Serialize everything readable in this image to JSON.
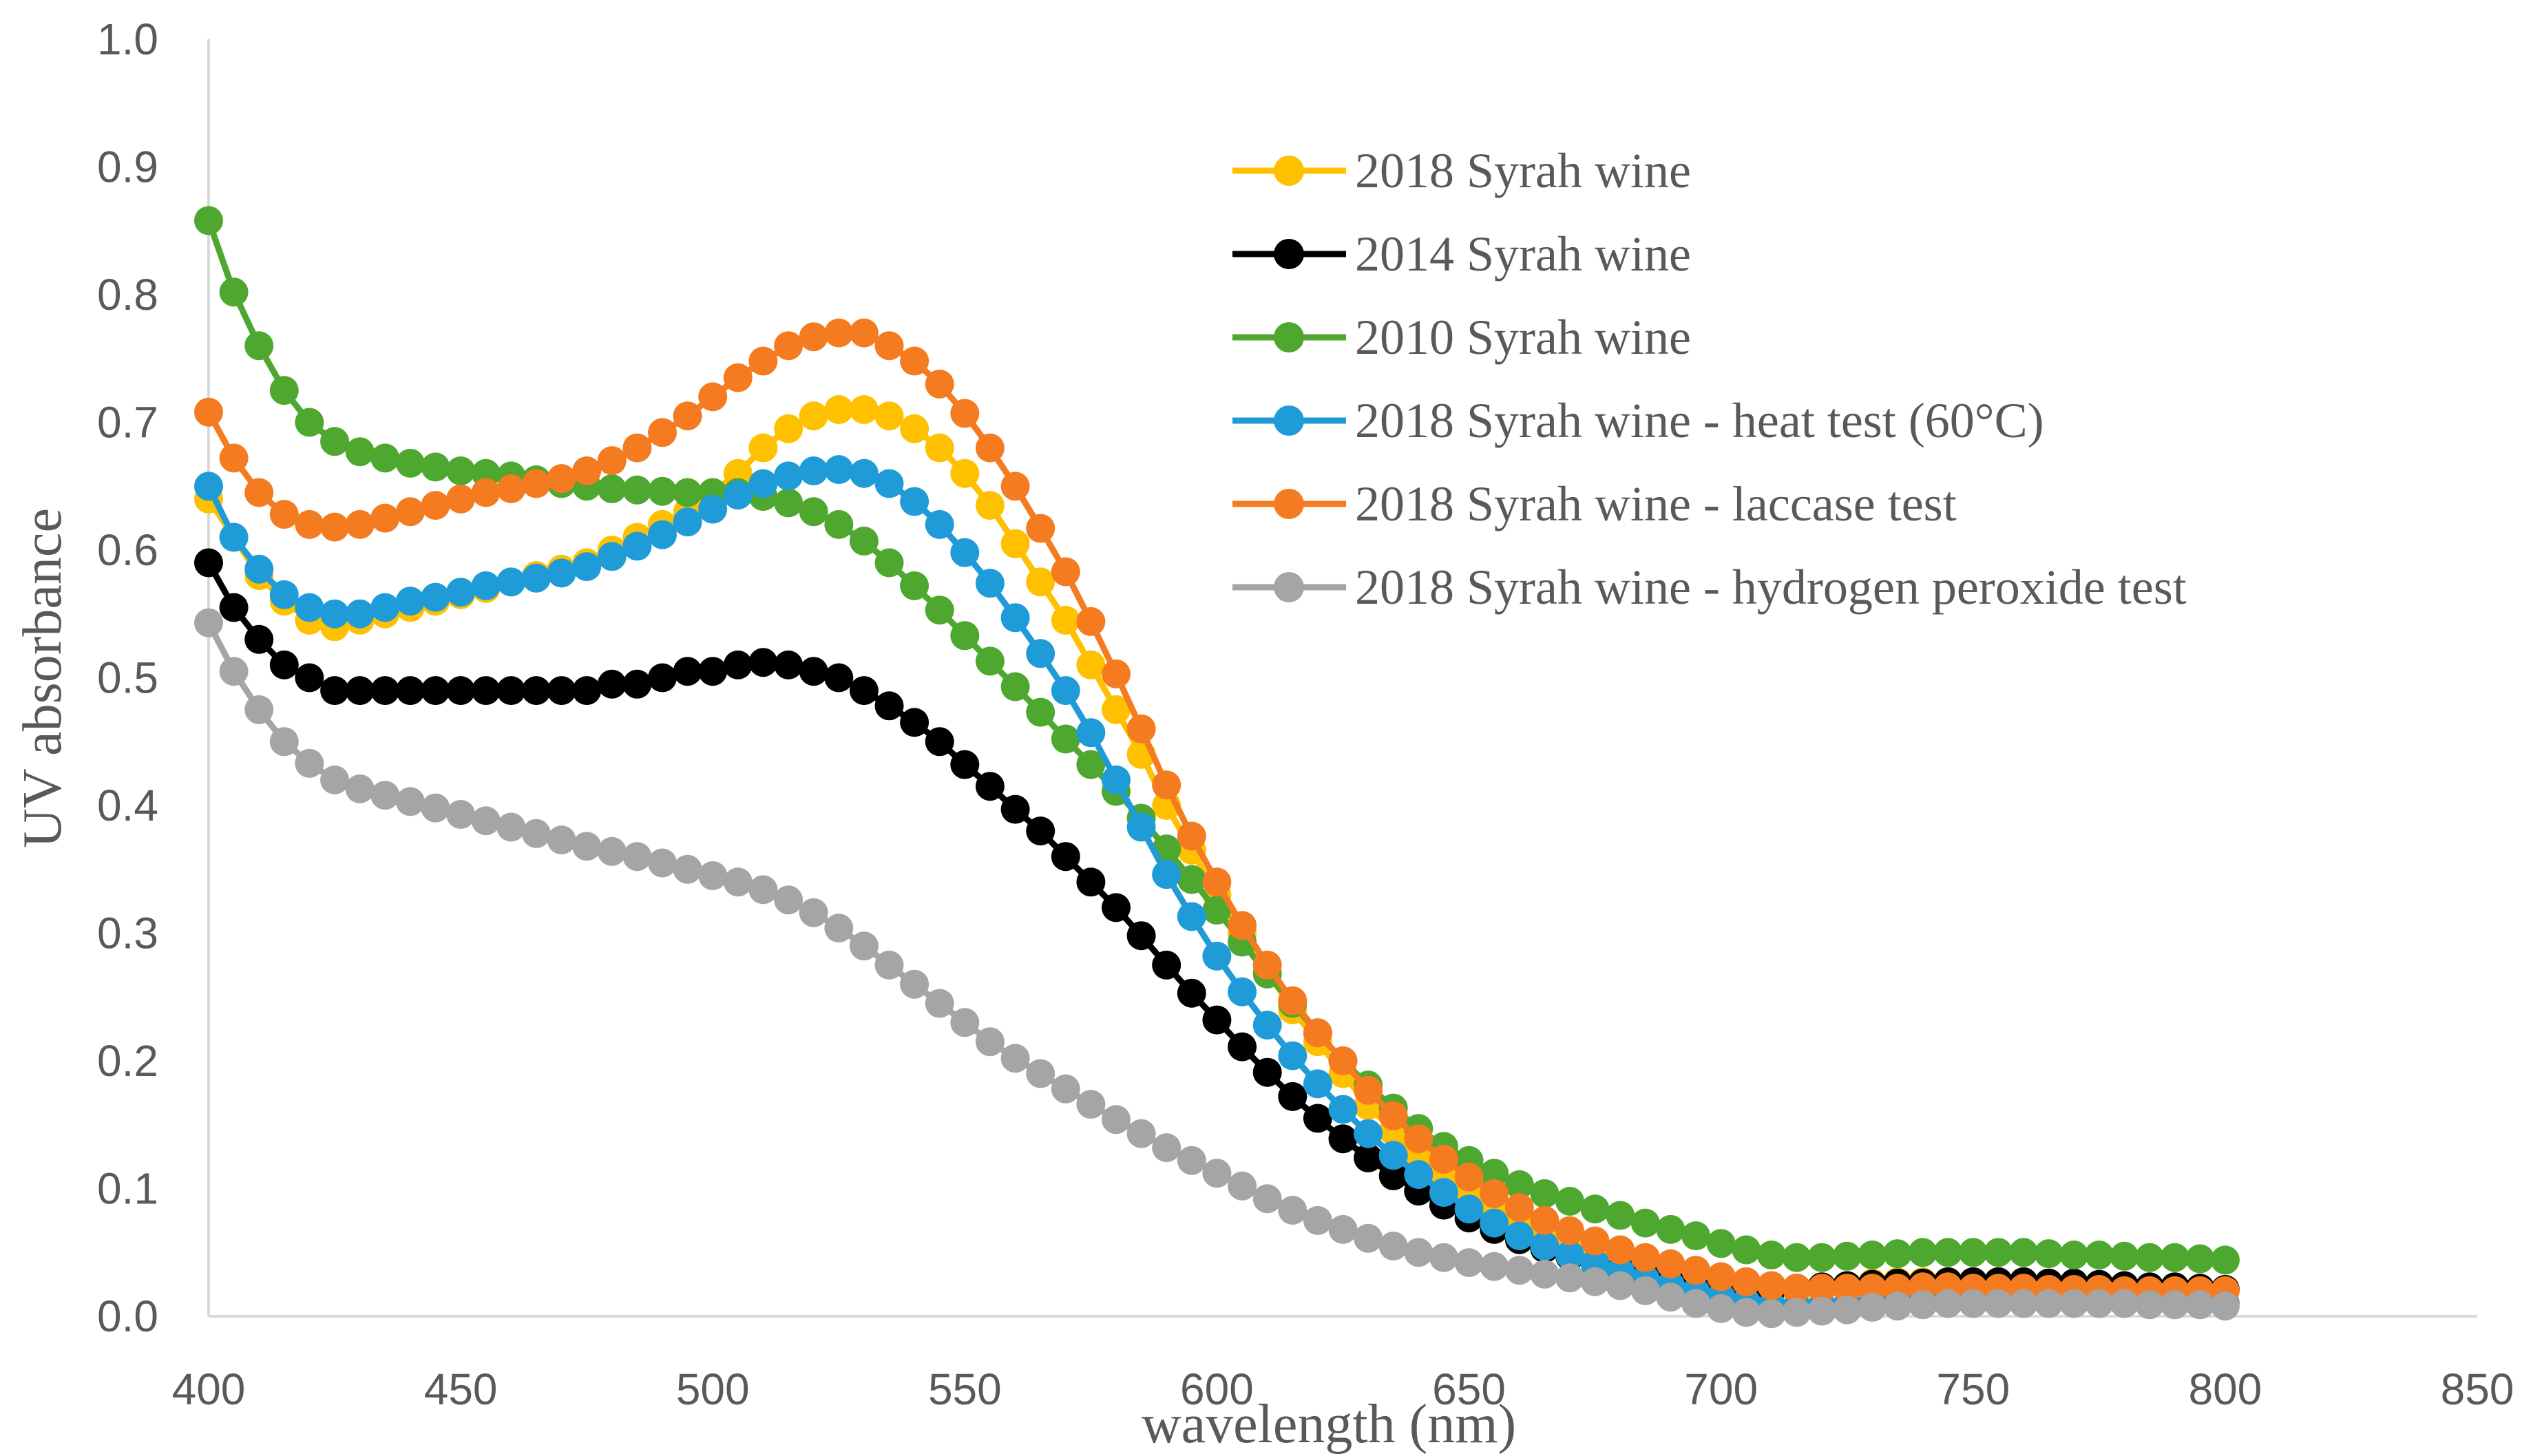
{
  "chart_data": {
    "type": "line",
    "title": "",
    "xlabel": "wavelength (nm)",
    "ylabel": "UV absorbance",
    "xlim": [
      400,
      850
    ],
    "ylim": [
      0,
      1.0
    ],
    "x_ticks": [
      "400",
      "450",
      "500",
      "550",
      "600",
      "650",
      "700",
      "750",
      "800",
      "850"
    ],
    "y_ticks": [
      "0.0",
      "0.1",
      "0.2",
      "0.3",
      "0.4",
      "0.5",
      "0.6",
      "0.7",
      "0.8",
      "0.9",
      "1.0"
    ],
    "grid": false,
    "legend_position": "top-right",
    "x": [
      400,
      405,
      410,
      415,
      420,
      425,
      430,
      435,
      440,
      445,
      450,
      455,
      460,
      465,
      470,
      475,
      480,
      485,
      490,
      495,
      500,
      505,
      510,
      515,
      520,
      525,
      530,
      535,
      540,
      545,
      550,
      555,
      560,
      565,
      570,
      575,
      580,
      585,
      590,
      595,
      600,
      605,
      610,
      615,
      620,
      625,
      630,
      635,
      640,
      645,
      650,
      655,
      660,
      665,
      670,
      675,
      680,
      685,
      690,
      695,
      700,
      705,
      710,
      715,
      720,
      725,
      730,
      735,
      740,
      745,
      750,
      755,
      760,
      765,
      770,
      775,
      780,
      785,
      790,
      795,
      800
    ],
    "series": [
      {
        "name": "2018 Syrah wine",
        "color": "#FFC000",
        "values": [
          0.64,
          0.61,
          0.58,
          0.56,
          0.545,
          0.54,
          0.545,
          0.55,
          0.555,
          0.56,
          0.565,
          0.57,
          0.575,
          0.58,
          0.585,
          0.59,
          0.6,
          0.61,
          0.62,
          0.63,
          0.645,
          0.66,
          0.68,
          0.695,
          0.705,
          0.71,
          0.71,
          0.705,
          0.695,
          0.68,
          0.66,
          0.635,
          0.605,
          0.575,
          0.545,
          0.51,
          0.475,
          0.44,
          0.4,
          0.365,
          0.33,
          0.3,
          0.27,
          0.24,
          0.215,
          0.19,
          0.165,
          0.145,
          0.125,
          0.11,
          0.095,
          0.085,
          0.075,
          0.065,
          0.058,
          0.052,
          0.046,
          0.04,
          0.035,
          0.03,
          0.026,
          0.022,
          0.02,
          0.02,
          0.022,
          0.024,
          0.026,
          0.027,
          0.027,
          0.027,
          0.027,
          0.027,
          0.027,
          0.026,
          0.025,
          0.024,
          0.023,
          0.022,
          0.021,
          0.02,
          0.02
        ]
      },
      {
        "name": "2014 Syrah wine",
        "color": "#000000",
        "values": [
          0.59,
          0.555,
          0.53,
          0.51,
          0.5,
          0.49,
          0.49,
          0.49,
          0.49,
          0.49,
          0.49,
          0.49,
          0.49,
          0.49,
          0.49,
          0.49,
          0.495,
          0.495,
          0.5,
          0.505,
          0.505,
          0.51,
          0.512,
          0.51,
          0.505,
          0.5,
          0.49,
          0.478,
          0.465,
          0.45,
          0.432,
          0.415,
          0.397,
          0.38,
          0.36,
          0.34,
          0.32,
          0.298,
          0.275,
          0.253,
          0.232,
          0.211,
          0.191,
          0.172,
          0.155,
          0.139,
          0.124,
          0.11,
          0.098,
          0.087,
          0.077,
          0.068,
          0.06,
          0.053,
          0.047,
          0.041,
          0.036,
          0.031,
          0.027,
          0.024,
          0.022,
          0.021,
          0.021,
          0.022,
          0.023,
          0.024,
          0.025,
          0.026,
          0.026,
          0.027,
          0.027,
          0.027,
          0.027,
          0.026,
          0.026,
          0.025,
          0.024,
          0.023,
          0.023,
          0.022,
          0.021
        ]
      },
      {
        "name": "2010 Syrah wine",
        "color": "#4EA72E",
        "values": [
          0.858,
          0.802,
          0.76,
          0.725,
          0.7,
          0.685,
          0.677,
          0.672,
          0.668,
          0.665,
          0.662,
          0.66,
          0.658,
          0.655,
          0.652,
          0.65,
          0.648,
          0.647,
          0.646,
          0.645,
          0.645,
          0.645,
          0.642,
          0.637,
          0.63,
          0.62,
          0.607,
          0.59,
          0.572,
          0.553,
          0.533,
          0.513,
          0.493,
          0.473,
          0.452,
          0.432,
          0.411,
          0.39,
          0.366,
          0.342,
          0.318,
          0.293,
          0.268,
          0.245,
          0.222,
          0.2,
          0.181,
          0.163,
          0.147,
          0.133,
          0.122,
          0.112,
          0.103,
          0.096,
          0.09,
          0.084,
          0.079,
          0.073,
          0.068,
          0.063,
          0.057,
          0.052,
          0.048,
          0.046,
          0.046,
          0.047,
          0.048,
          0.049,
          0.05,
          0.05,
          0.05,
          0.05,
          0.05,
          0.049,
          0.048,
          0.048,
          0.047,
          0.046,
          0.046,
          0.045,
          0.044
        ]
      },
      {
        "name": "2018 Syrah wine - heat test (60°C)",
        "color": "#1F9BD7",
        "values": [
          0.65,
          0.61,
          0.585,
          0.565,
          0.555,
          0.55,
          0.55,
          0.555,
          0.56,
          0.563,
          0.567,
          0.572,
          0.575,
          0.578,
          0.582,
          0.587,
          0.595,
          0.603,
          0.612,
          0.622,
          0.632,
          0.643,
          0.652,
          0.658,
          0.662,
          0.663,
          0.66,
          0.652,
          0.638,
          0.62,
          0.598,
          0.574,
          0.547,
          0.519,
          0.49,
          0.457,
          0.42,
          0.383,
          0.346,
          0.313,
          0.282,
          0.254,
          0.228,
          0.204,
          0.182,
          0.162,
          0.143,
          0.126,
          0.111,
          0.097,
          0.084,
          0.073,
          0.063,
          0.055,
          0.048,
          0.041,
          0.035,
          0.029,
          0.024,
          0.019,
          0.015,
          0.011,
          0.008,
          0.007,
          0.008,
          0.009,
          0.01,
          0.011,
          0.011,
          0.012,
          0.012,
          0.012,
          0.012,
          0.012,
          0.012,
          0.011,
          0.011,
          0.011,
          0.01,
          0.01,
          0.01
        ]
      },
      {
        "name": "2018 Syrah wine - laccase test",
        "color": "#F47B20",
        "values": [
          0.708,
          0.672,
          0.645,
          0.628,
          0.62,
          0.618,
          0.62,
          0.625,
          0.63,
          0.635,
          0.64,
          0.645,
          0.648,
          0.652,
          0.656,
          0.662,
          0.67,
          0.68,
          0.692,
          0.705,
          0.72,
          0.735,
          0.748,
          0.76,
          0.767,
          0.77,
          0.77,
          0.76,
          0.748,
          0.73,
          0.707,
          0.68,
          0.65,
          0.617,
          0.583,
          0.544,
          0.503,
          0.46,
          0.416,
          0.376,
          0.34,
          0.306,
          0.275,
          0.247,
          0.222,
          0.2,
          0.177,
          0.157,
          0.139,
          0.123,
          0.109,
          0.096,
          0.085,
          0.075,
          0.067,
          0.059,
          0.052,
          0.046,
          0.041,
          0.036,
          0.031,
          0.027,
          0.024,
          0.022,
          0.022,
          0.022,
          0.022,
          0.022,
          0.023,
          0.023,
          0.022,
          0.022,
          0.022,
          0.021,
          0.021,
          0.021,
          0.02,
          0.02,
          0.02,
          0.02,
          0.02
        ]
      },
      {
        "name": "2018 Syrah wine - hydrogen peroxide test",
        "color": "#A5A5A5",
        "values": [
          0.543,
          0.505,
          0.475,
          0.45,
          0.433,
          0.42,
          0.413,
          0.408,
          0.403,
          0.398,
          0.393,
          0.388,
          0.383,
          0.378,
          0.373,
          0.368,
          0.364,
          0.36,
          0.355,
          0.35,
          0.345,
          0.34,
          0.334,
          0.326,
          0.316,
          0.304,
          0.29,
          0.275,
          0.26,
          0.245,
          0.23,
          0.215,
          0.202,
          0.19,
          0.178,
          0.166,
          0.154,
          0.143,
          0.132,
          0.122,
          0.112,
          0.102,
          0.092,
          0.083,
          0.075,
          0.068,
          0.061,
          0.055,
          0.05,
          0.046,
          0.042,
          0.039,
          0.036,
          0.033,
          0.03,
          0.027,
          0.024,
          0.02,
          0.015,
          0.01,
          0.006,
          0.003,
          0.002,
          0.003,
          0.004,
          0.005,
          0.007,
          0.008,
          0.009,
          0.01,
          0.01,
          0.01,
          0.01,
          0.01,
          0.01,
          0.01,
          0.01,
          0.009,
          0.009,
          0.009,
          0.008
        ]
      }
    ]
  }
}
